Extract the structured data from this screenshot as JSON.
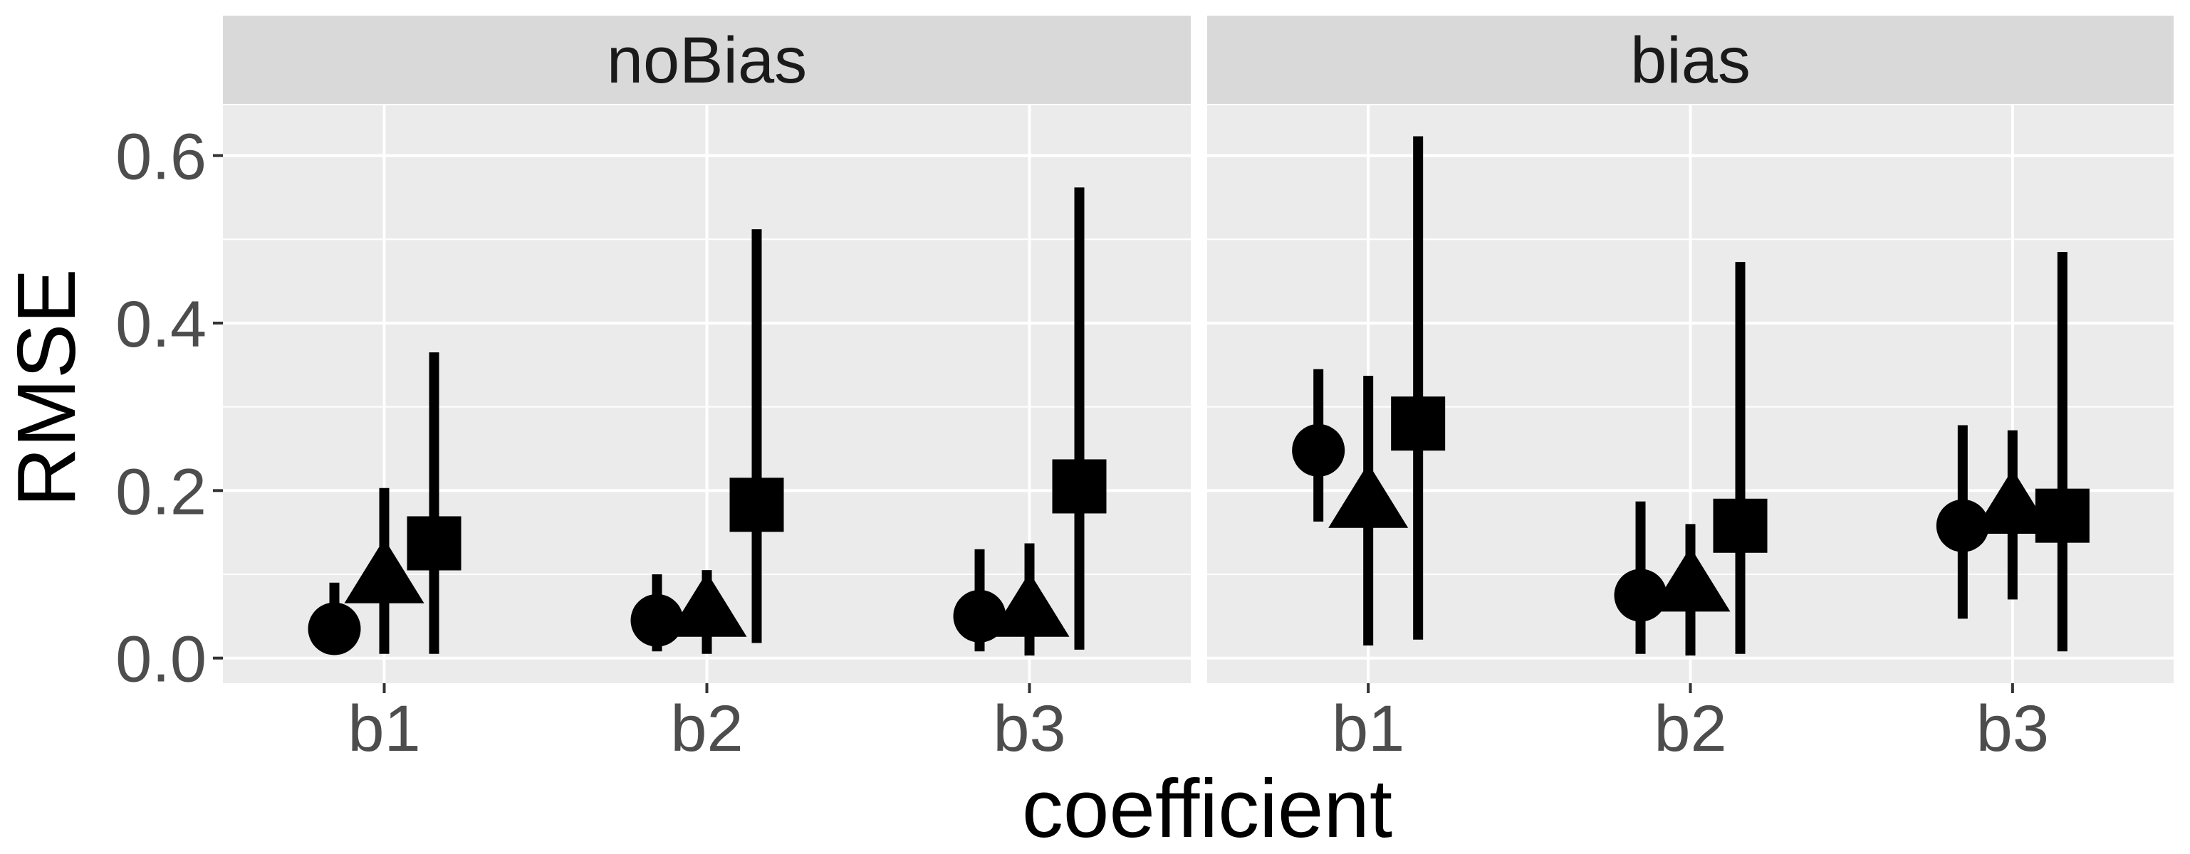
{
  "chart_data": {
    "type": "scatter",
    "style": "faceted point-range (ggplot2 grey theme)",
    "xlabel": "coefficient",
    "ylabel": "RMSE",
    "ylim": [
      -0.03,
      0.66
    ],
    "y_ticks": [
      0.0,
      0.2,
      0.4,
      0.6
    ],
    "y_tick_labels": [
      "0.0",
      "0.2",
      "0.4",
      "0.6"
    ],
    "categories": [
      "b1",
      "b2",
      "b3"
    ],
    "grid": true,
    "legend": "none",
    "dodge_order": [
      "circle",
      "triangle",
      "square"
    ],
    "colors": {
      "panel_bg": "#ebebeb",
      "strip_bg": "#d9d9d9",
      "grid": "#ffffff",
      "marks": "#000000"
    },
    "panels": [
      {
        "label": "noBias",
        "points": [
          {
            "x": "b1",
            "shape": "circle",
            "y": 0.035,
            "ymin": 0.01,
            "ymax": 0.09
          },
          {
            "x": "b1",
            "shape": "triangle",
            "y": 0.095,
            "ymin": 0.005,
            "ymax": 0.203
          },
          {
            "x": "b1",
            "shape": "square",
            "y": 0.137,
            "ymin": 0.005,
            "ymax": 0.365
          },
          {
            "x": "b2",
            "shape": "circle",
            "y": 0.045,
            "ymin": 0.008,
            "ymax": 0.1
          },
          {
            "x": "b2",
            "shape": "triangle",
            "y": 0.055,
            "ymin": 0.005,
            "ymax": 0.105
          },
          {
            "x": "b2",
            "shape": "square",
            "y": 0.183,
            "ymin": 0.018,
            "ymax": 0.512
          },
          {
            "x": "b3",
            "shape": "circle",
            "y": 0.05,
            "ymin": 0.008,
            "ymax": 0.13
          },
          {
            "x": "b3",
            "shape": "triangle",
            "y": 0.055,
            "ymin": 0.003,
            "ymax": 0.137
          },
          {
            "x": "b3",
            "shape": "square",
            "y": 0.205,
            "ymin": 0.01,
            "ymax": 0.562
          }
        ]
      },
      {
        "label": "bias",
        "points": [
          {
            "x": "b1",
            "shape": "circle",
            "y": 0.248,
            "ymin": 0.163,
            "ymax": 0.345
          },
          {
            "x": "b1",
            "shape": "triangle",
            "y": 0.185,
            "ymin": 0.015,
            "ymax": 0.337
          },
          {
            "x": "b1",
            "shape": "square",
            "y": 0.28,
            "ymin": 0.022,
            "ymax": 0.623
          },
          {
            "x": "b2",
            "shape": "circle",
            "y": 0.075,
            "ymin": 0.005,
            "ymax": 0.187
          },
          {
            "x": "b2",
            "shape": "triangle",
            "y": 0.085,
            "ymin": 0.003,
            "ymax": 0.16
          },
          {
            "x": "b2",
            "shape": "square",
            "y": 0.158,
            "ymin": 0.005,
            "ymax": 0.473
          },
          {
            "x": "b3",
            "shape": "circle",
            "y": 0.158,
            "ymin": 0.047,
            "ymax": 0.278
          },
          {
            "x": "b3",
            "shape": "triangle",
            "y": 0.178,
            "ymin": 0.07,
            "ymax": 0.272
          },
          {
            "x": "b3",
            "shape": "square",
            "y": 0.17,
            "ymin": 0.008,
            "ymax": 0.485
          }
        ]
      }
    ]
  }
}
